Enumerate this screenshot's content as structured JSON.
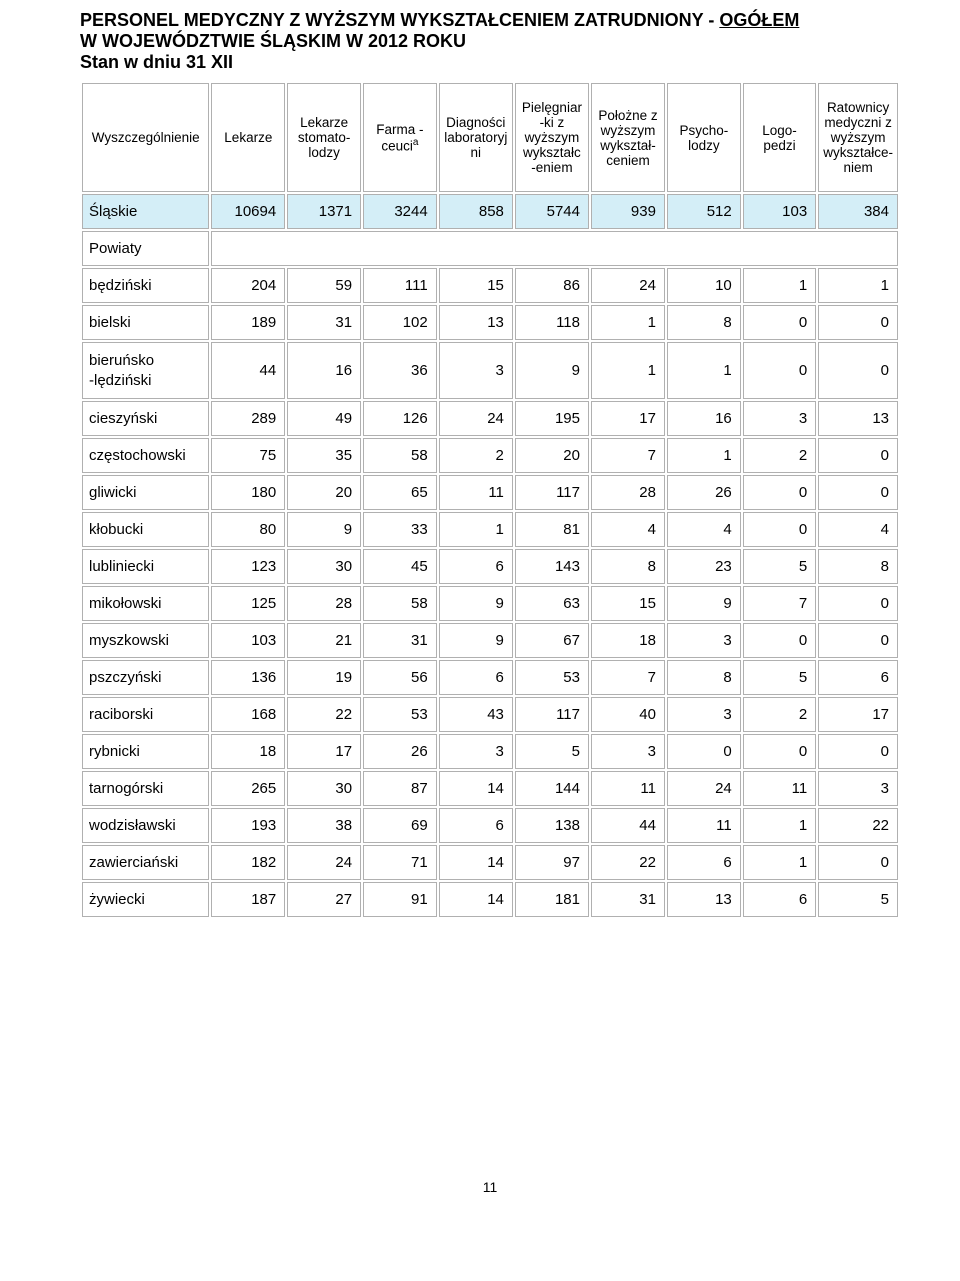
{
  "title": {
    "line1_a": "PERSONEL MEDYCZNY  Z WYŻSZYM WYKSZTAŁCENIEM ZATRUDNIONY - ",
    "line1_b": "OGÓŁEM",
    "line2": "W WOJEWÓDZTWIE ŚLĄSKIM W 2012  ROKU",
    "line3": "Stan w dniu 31 XII"
  },
  "columns": [
    "Wyszczególnienie",
    "Lekarze",
    "Lekarze stomato-lodzy",
    "Farma -ceuci",
    "Diagności laboratoryj ni",
    "Pielęgniar -ki z wyższym wykształc -eniem",
    "Położne z wyższym wykształ-ceniem",
    "Psycho-lodzy",
    "Logo-pedzi",
    "Ratownicy medyczni z wyższym wykształce-niem"
  ],
  "col_sup": "a",
  "totalRow": {
    "label": "Śląskie",
    "vals": [
      "10694",
      "1371",
      "3244",
      "858",
      "5744",
      "939",
      "512",
      "103",
      "384"
    ]
  },
  "sectionLabel": "Powiaty",
  "rows": [
    {
      "label": "będziński",
      "vals": [
        "204",
        "59",
        "111",
        "15",
        "86",
        "24",
        "10",
        "1",
        "1"
      ]
    },
    {
      "label": "bielski",
      "vals": [
        "189",
        "31",
        "102",
        "13",
        "118",
        "1",
        "8",
        "0",
        "0"
      ]
    },
    {
      "label": "bieruńsko -lędziński",
      "vals": [
        "44",
        "16",
        "36",
        "3",
        "9",
        "1",
        "1",
        "0",
        "0"
      ],
      "two_line": true
    },
    {
      "label": "cieszyński",
      "vals": [
        "289",
        "49",
        "126",
        "24",
        "195",
        "17",
        "16",
        "3",
        "13"
      ]
    },
    {
      "label": "częstochowski",
      "vals": [
        "75",
        "35",
        "58",
        "2",
        "20",
        "7",
        "1",
        "2",
        "0"
      ]
    },
    {
      "label": "gliwicki",
      "vals": [
        "180",
        "20",
        "65",
        "11",
        "117",
        "28",
        "26",
        "0",
        "0"
      ]
    },
    {
      "label": "kłobucki",
      "vals": [
        "80",
        "9",
        "33",
        "1",
        "81",
        "4",
        "4",
        "0",
        "4"
      ]
    },
    {
      "label": "lubliniecki",
      "vals": [
        "123",
        "30",
        "45",
        "6",
        "143",
        "8",
        "23",
        "5",
        "8"
      ]
    },
    {
      "label": "mikołowski",
      "vals": [
        "125",
        "28",
        "58",
        "9",
        "63",
        "15",
        "9",
        "7",
        "0"
      ]
    },
    {
      "label": "myszkowski",
      "vals": [
        "103",
        "21",
        "31",
        "9",
        "67",
        "18",
        "3",
        "0",
        "0"
      ]
    },
    {
      "label": "pszczyński",
      "vals": [
        "136",
        "19",
        "56",
        "6",
        "53",
        "7",
        "8",
        "5",
        "6"
      ]
    },
    {
      "label": "raciborski",
      "vals": [
        "168",
        "22",
        "53",
        "43",
        "117",
        "40",
        "3",
        "2",
        "17"
      ]
    },
    {
      "label": "rybnicki",
      "vals": [
        "18",
        "17",
        "26",
        "3",
        "5",
        "3",
        "0",
        "0",
        "0"
      ]
    },
    {
      "label": "tarnogórski",
      "vals": [
        "265",
        "30",
        "87",
        "14",
        "144",
        "11",
        "24",
        "11",
        "3"
      ]
    },
    {
      "label": "wodzisławski",
      "vals": [
        "193",
        "38",
        "69",
        "6",
        "138",
        "44",
        "11",
        "1",
        "22"
      ]
    },
    {
      "label": "zawierciański",
      "vals": [
        "182",
        "24",
        "71",
        "14",
        "97",
        "22",
        "6",
        "1",
        "0"
      ]
    },
    {
      "label": "żywiecki",
      "vals": [
        "187",
        "27",
        "91",
        "14",
        "181",
        "31",
        "13",
        "6",
        "5"
      ]
    }
  ],
  "pageNumber": "11",
  "style": {
    "highlight_bg": "#d4eef7",
    "border_color": "#b0b0b0",
    "title_fontsize": 18,
    "header_fontsize": 13.5,
    "body_fontsize": 15,
    "col_widths_pct": [
      16,
      9.3,
      9.3,
      9.3,
      9.3,
      9.3,
      9.3,
      9.3,
      9.3,
      9.3
    ]
  }
}
